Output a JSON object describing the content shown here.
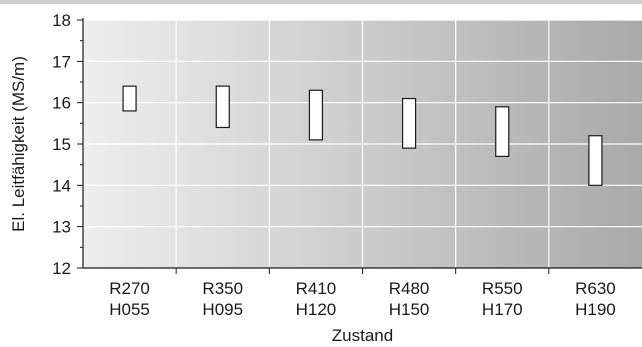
{
  "chart_data": {
    "type": "range-bar",
    "categories": [
      {
        "line1": "R270",
        "line2": "H055"
      },
      {
        "line1": "R350",
        "line2": "H095"
      },
      {
        "line1": "R410",
        "line2": "H120"
      },
      {
        "line1": "R480",
        "line2": "H150"
      },
      {
        "line1": "R550",
        "line2": "H170"
      },
      {
        "line1": "R630",
        "line2": "H190"
      }
    ],
    "ranges": [
      {
        "low": 15.8,
        "high": 16.4
      },
      {
        "low": 15.4,
        "high": 16.4
      },
      {
        "low": 15.1,
        "high": 16.3
      },
      {
        "low": 14.9,
        "high": 16.1
      },
      {
        "low": 14.7,
        "high": 15.9
      },
      {
        "low": 14.0,
        "high": 15.2
      }
    ],
    "yticks": [
      12,
      13,
      14,
      15,
      16,
      17,
      18
    ],
    "ylim": [
      12,
      18
    ],
    "xlabel": "Zustand",
    "ylabel": "El. Leitfähigkeit (MS/m)",
    "grid": true,
    "background_gradient": [
      "#eeeeee",
      "#a9a9a9"
    ],
    "box_fill": "#ffffff",
    "box_stroke": "#1a1a1a"
  }
}
